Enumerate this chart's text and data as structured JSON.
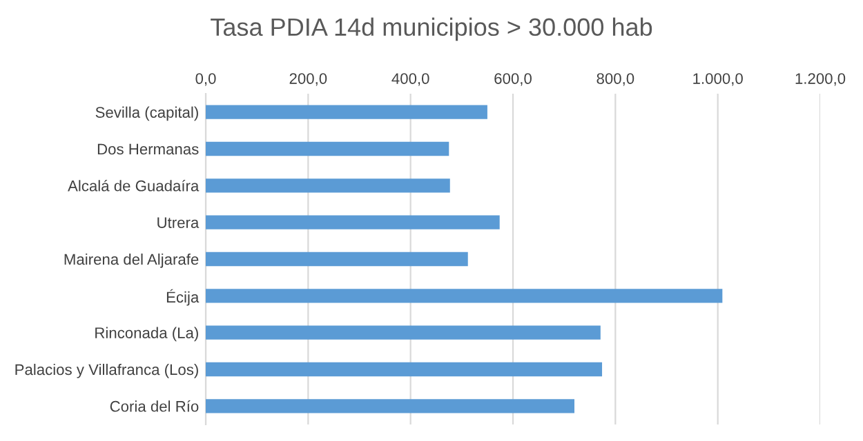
{
  "chart_data": {
    "type": "bar",
    "orientation": "horizontal",
    "title": "Tasa PDIA 14d municipios > 30.000 hab",
    "categories": [
      "Sevilla (capital)",
      "Dos Hermanas",
      "Alcalá de Guadaíra",
      "Utrera",
      "Mairena del Aljarafe",
      "Écija",
      "Rinconada (La)",
      "Palacios y Villafranca (Los)",
      "Coria del Río"
    ],
    "values": [
      550,
      475,
      477,
      574,
      512,
      1009,
      771,
      774,
      720
    ],
    "color": "#5b9bd5",
    "xlim": [
      0,
      1200
    ],
    "xticks": [
      {
        "value": 0,
        "label": "0,0"
      },
      {
        "value": 200,
        "label": "200,0"
      },
      {
        "value": 400,
        "label": "400,0"
      },
      {
        "value": 600,
        "label": "600,0"
      },
      {
        "value": 800,
        "label": "800,0"
      },
      {
        "value": 1000,
        "label": "1.000,0"
      },
      {
        "value": 1200,
        "label": "1.200,0"
      }
    ],
    "grid": "x"
  }
}
